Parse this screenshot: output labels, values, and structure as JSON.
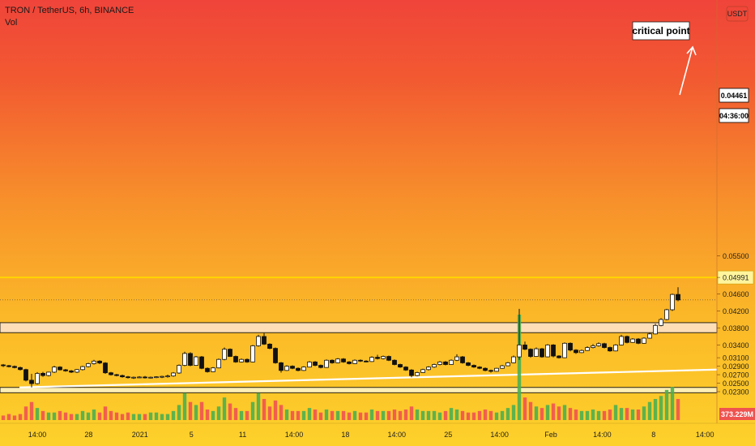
{
  "header": {
    "symbol_line": "TRON / TetherUS, 6h, BINANCE",
    "volume_label": "Vol"
  },
  "price_axis": {
    "currency_badge": "USDT",
    "ticks": [
      "0.05500",
      "0.04991",
      "0.04600",
      "0.04200",
      "0.03800",
      "0.03400",
      "0.03100",
      "0.02900",
      "0.02700",
      "0.02500",
      "0.02300"
    ],
    "current_price": "0.04461",
    "countdown": "04:36:00",
    "volume_value": "373.229M"
  },
  "time_axis": {
    "labels": [
      "14:00",
      "28",
      "2021",
      "5",
      "11",
      "14:00",
      "18",
      "14:00",
      "25",
      "14:00",
      "Feb",
      "14:00",
      "8",
      "14:00"
    ]
  },
  "annotations": {
    "critical_point": "critical point"
  },
  "colors": {
    "up_body": "#ffffff",
    "down_body": "#111111",
    "wick": "#111111",
    "level_line": "#ffd400",
    "zone_fill": "#fde4d0",
    "lower_zone_fill": "#fff3c4",
    "vol_up": "#4caf50",
    "vol_down": "#ef5350",
    "trendline": "#ffffff"
  },
  "chart_data": {
    "type": "candlestick",
    "symbol": "TRON / TetherUS",
    "interval": "6h",
    "exchange": "BINANCE",
    "ylim": [
      0.0228,
      0.0555
    ],
    "levels": {
      "critical_point": 0.04991,
      "current_price": 0.04461
    },
    "zones": [
      {
        "low": 0.0369,
        "high": 0.03925
      },
      {
        "low": 0.02275,
        "high": 0.024
      }
    ],
    "trendline": {
      "start": [
        0,
        0.024
      ],
      "end": [
        116,
        0.0282
      ]
    },
    "candles": [
      [
        0.0293,
        0.02952,
        0.02881,
        0.02915
      ],
      [
        0.02912,
        0.0293,
        0.0287,
        0.0289
      ],
      [
        0.02895,
        0.02917,
        0.02848,
        0.02868
      ],
      [
        0.02868,
        0.0289,
        0.02798,
        0.0282
      ],
      [
        0.0282,
        0.0284,
        0.0254,
        0.0257
      ],
      [
        0.0257,
        0.0272,
        0.024,
        0.0249
      ],
      [
        0.0249,
        0.0276,
        0.0247,
        0.0273
      ],
      [
        0.02732,
        0.02765,
        0.0265,
        0.0268
      ],
      [
        0.0268,
        0.0277,
        0.0266,
        0.0276
      ],
      [
        0.0276,
        0.0291,
        0.0274,
        0.0288
      ],
      [
        0.0288,
        0.029,
        0.028,
        0.02815
      ],
      [
        0.02815,
        0.02835,
        0.0277,
        0.0279
      ],
      [
        0.0279,
        0.0281,
        0.0274,
        0.0276
      ],
      [
        0.0276,
        0.02835,
        0.0274,
        0.0282
      ],
      [
        0.0282,
        0.0291,
        0.028,
        0.0289
      ],
      [
        0.0289,
        0.0298,
        0.0287,
        0.0296
      ],
      [
        0.0296,
        0.0305,
        0.0294,
        0.0302
      ],
      [
        0.0302,
        0.0304,
        0.0295,
        0.02975
      ],
      [
        0.02975,
        0.02995,
        0.0272,
        0.02745
      ],
      [
        0.02745,
        0.02765,
        0.0268,
        0.027
      ],
      [
        0.027,
        0.0272,
        0.0266,
        0.0268
      ],
      [
        0.0268,
        0.027,
        0.0263,
        0.0265
      ],
      [
        0.0265,
        0.0267,
        0.0261,
        0.0263
      ],
      [
        0.0263,
        0.02655,
        0.026,
        0.0264
      ],
      [
        0.0264,
        0.02665,
        0.0262,
        0.02645
      ],
      [
        0.02645,
        0.0267,
        0.0261,
        0.0263
      ],
      [
        0.0263,
        0.02655,
        0.0261,
        0.0264
      ],
      [
        0.0264,
        0.02662,
        0.0262,
        0.0265
      ],
      [
        0.0265,
        0.02675,
        0.0262,
        0.0266
      ],
      [
        0.0266,
        0.027,
        0.0263,
        0.0267
      ],
      [
        0.0267,
        0.0276,
        0.0265,
        0.0274
      ],
      [
        0.0274,
        0.0294,
        0.0272,
        0.0292
      ],
      [
        0.0292,
        0.0324,
        0.029,
        0.032
      ],
      [
        0.032,
        0.0323,
        0.029,
        0.0292
      ],
      [
        0.0292,
        0.0314,
        0.0291,
        0.0312
      ],
      [
        0.0312,
        0.0314,
        0.0283,
        0.0285
      ],
      [
        0.0285,
        0.0287,
        0.0275,
        0.0277
      ],
      [
        0.0277,
        0.0288,
        0.0276,
        0.0286
      ],
      [
        0.0286,
        0.0308,
        0.0285,
        0.0306
      ],
      [
        0.0306,
        0.0334,
        0.0304,
        0.033
      ],
      [
        0.033,
        0.0332,
        0.0312,
        0.0313
      ],
      [
        0.0313,
        0.0315,
        0.0298,
        0.03
      ],
      [
        0.03,
        0.0308,
        0.0299,
        0.0306
      ],
      [
        0.0306,
        0.0308,
        0.0298,
        0.03
      ],
      [
        0.03,
        0.034,
        0.0299,
        0.0338
      ],
      [
        0.0338,
        0.0364,
        0.0336,
        0.036
      ],
      [
        0.036,
        0.0368,
        0.034,
        0.0342
      ],
      [
        0.0342,
        0.0344,
        0.033,
        0.0332
      ],
      [
        0.0332,
        0.0334,
        0.0296,
        0.0298
      ],
      [
        0.0298,
        0.03,
        0.0275,
        0.028
      ],
      [
        0.028,
        0.0292,
        0.0279,
        0.029
      ],
      [
        0.029,
        0.0292,
        0.0283,
        0.0285
      ],
      [
        0.0285,
        0.0287,
        0.0278,
        0.028
      ],
      [
        0.028,
        0.029,
        0.0279,
        0.0288
      ],
      [
        0.0288,
        0.0302,
        0.0287,
        0.03
      ],
      [
        0.03,
        0.0302,
        0.029,
        0.0292
      ],
      [
        0.0292,
        0.0294,
        0.0285,
        0.0287
      ],
      [
        0.0287,
        0.0306,
        0.0286,
        0.0304
      ],
      [
        0.0304,
        0.0306,
        0.0296,
        0.0298
      ],
      [
        0.0298,
        0.0309,
        0.0297,
        0.0307
      ],
      [
        0.0307,
        0.0309,
        0.0298,
        0.03
      ],
      [
        0.03,
        0.0302,
        0.0294,
        0.0296
      ],
      [
        0.0296,
        0.0306,
        0.0295,
        0.0304
      ],
      [
        0.0304,
        0.0306,
        0.03,
        0.0302
      ],
      [
        0.0302,
        0.0304,
        0.0299,
        0.0301
      ],
      [
        0.0301,
        0.0313,
        0.03,
        0.0311
      ],
      [
        0.0311,
        0.0317,
        0.0306,
        0.0308
      ],
      [
        0.0308,
        0.0315,
        0.0306,
        0.0313
      ],
      [
        0.0313,
        0.0315,
        0.0302,
        0.0304
      ],
      [
        0.0304,
        0.0306,
        0.0292,
        0.0294
      ],
      [
        0.0294,
        0.0296,
        0.0286,
        0.0288
      ],
      [
        0.0288,
        0.029,
        0.0279,
        0.0281
      ],
      [
        0.0281,
        0.0283,
        0.0264,
        0.0268
      ],
      [
        0.0268,
        0.0277,
        0.0266,
        0.0275
      ],
      [
        0.0275,
        0.0284,
        0.0274,
        0.0282
      ],
      [
        0.0282,
        0.029,
        0.028,
        0.0288
      ],
      [
        0.0288,
        0.0296,
        0.0286,
        0.0294
      ],
      [
        0.0294,
        0.0302,
        0.0292,
        0.03
      ],
      [
        0.03,
        0.0302,
        0.0292,
        0.0294
      ],
      [
        0.0294,
        0.0306,
        0.0293,
        0.0304
      ],
      [
        0.0304,
        0.0318,
        0.0302,
        0.0312
      ],
      [
        0.0312,
        0.0314,
        0.0296,
        0.0298
      ],
      [
        0.0298,
        0.03,
        0.029,
        0.0292
      ],
      [
        0.0292,
        0.0294,
        0.0286,
        0.0288
      ],
      [
        0.0288,
        0.029,
        0.0283,
        0.0285
      ],
      [
        0.0285,
        0.0287,
        0.0278,
        0.028
      ],
      [
        0.028,
        0.0282,
        0.0275,
        0.0278
      ],
      [
        0.0278,
        0.0286,
        0.0277,
        0.0285
      ],
      [
        0.0285,
        0.0293,
        0.0284,
        0.0291
      ],
      [
        0.0291,
        0.03,
        0.029,
        0.0298
      ],
      [
        0.0298,
        0.0315,
        0.0297,
        0.0312
      ],
      [
        0.0312,
        0.0425,
        0.0305,
        0.034
      ],
      [
        0.034,
        0.0348,
        0.0328,
        0.033
      ],
      [
        0.033,
        0.0332,
        0.031,
        0.0313
      ],
      [
        0.0313,
        0.0334,
        0.0312,
        0.0331
      ],
      [
        0.0331,
        0.0333,
        0.031,
        0.0312
      ],
      [
        0.0312,
        0.0342,
        0.0311,
        0.034
      ],
      [
        0.034,
        0.0342,
        0.0311,
        0.0314
      ],
      [
        0.0314,
        0.0316,
        0.0308,
        0.031
      ],
      [
        0.031,
        0.0346,
        0.0309,
        0.0344
      ],
      [
        0.0344,
        0.0346,
        0.0325,
        0.0328
      ],
      [
        0.0328,
        0.033,
        0.0319,
        0.0322
      ],
      [
        0.0322,
        0.0329,
        0.0321,
        0.0327
      ],
      [
        0.0327,
        0.0337,
        0.0326,
        0.0334
      ],
      [
        0.0334,
        0.0342,
        0.0332,
        0.0338
      ],
      [
        0.0338,
        0.0346,
        0.0336,
        0.0343
      ],
      [
        0.0343,
        0.0345,
        0.0332,
        0.0334
      ],
      [
        0.0334,
        0.0336,
        0.0324,
        0.0326
      ],
      [
        0.0326,
        0.0342,
        0.0325,
        0.034
      ],
      [
        0.034,
        0.0364,
        0.0339,
        0.036
      ],
      [
        0.036,
        0.0362,
        0.0344,
        0.0346
      ],
      [
        0.0346,
        0.0356,
        0.0345,
        0.0354
      ],
      [
        0.0354,
        0.0356,
        0.0342,
        0.0344
      ],
      [
        0.0344,
        0.0358,
        0.0343,
        0.0356
      ],
      [
        0.0356,
        0.0369,
        0.0355,
        0.0366
      ],
      [
        0.0366,
        0.039,
        0.0365,
        0.0386
      ],
      [
        0.0386,
        0.0403,
        0.0384,
        0.04
      ],
      [
        0.04,
        0.0425,
        0.0398,
        0.0423
      ],
      [
        0.0423,
        0.0461,
        0.042,
        0.0459
      ],
      [
        0.0459,
        0.0476,
        0.0443,
        0.04461
      ]
    ],
    "volume": [
      3,
      4,
      3,
      4,
      9,
      12,
      8,
      6,
      5,
      5,
      6,
      5,
      4,
      4,
      6,
      5,
      7,
      5,
      9,
      6,
      5,
      4,
      5,
      4,
      4,
      4,
      5,
      5,
      4,
      4,
      6,
      10,
      18,
      12,
      10,
      12,
      7,
      6,
      9,
      15,
      11,
      8,
      6,
      6,
      12,
      18,
      14,
      9,
      13,
      10,
      7,
      6,
      6,
      6,
      8,
      7,
      5,
      7,
      6,
      6,
      6,
      5,
      6,
      5,
      5,
      7,
      6,
      6,
      6,
      7,
      6,
      7,
      9,
      7,
      6,
      6,
      6,
      5,
      6,
      8,
      7,
      6,
      5,
      5,
      6,
      7,
      6,
      5,
      6,
      8,
      10,
      70,
      15,
      12,
      9,
      8,
      10,
      11,
      9,
      10,
      8,
      7,
      6,
      6,
      7,
      6,
      6,
      7,
      10,
      8,
      8,
      7,
      7,
      9,
      12,
      14,
      16,
      20,
      22,
      14
    ]
  }
}
